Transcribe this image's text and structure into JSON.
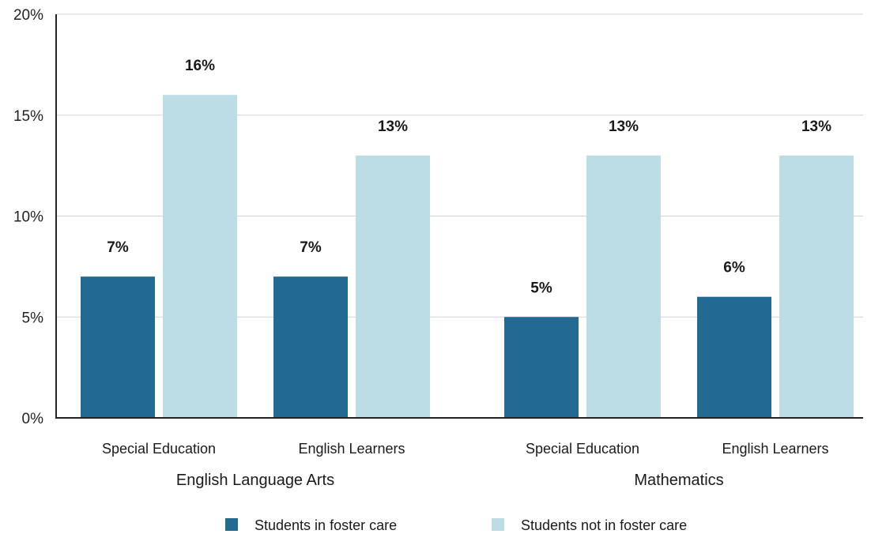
{
  "chart_data": {
    "type": "bar",
    "title": "",
    "xlabel": "",
    "ylabel": "",
    "ylim": [
      0,
      20
    ],
    "yticks": [
      0,
      5,
      10,
      15,
      20
    ],
    "ytick_labels": [
      "0%",
      "5%",
      "10%",
      "15%",
      "20%"
    ],
    "grid": true,
    "legend_position": "bottom",
    "groups": [
      {
        "label": "English Language Arts",
        "categories": [
          "Special Education",
          "English Learners"
        ]
      },
      {
        "label": "Mathematics",
        "categories": [
          "Special Education",
          "English Learners"
        ]
      }
    ],
    "series": [
      {
        "name": "Students in foster care",
        "color": "#236a92",
        "values": [
          7,
          7,
          5,
          6
        ],
        "labels": [
          "7%",
          "7%",
          "5%",
          "6%"
        ]
      },
      {
        "name": "Students not in foster care",
        "color": "#bcdde5",
        "values": [
          16,
          13,
          13,
          13
        ],
        "labels": [
          "16%",
          "13%",
          "13%",
          "13%"
        ]
      }
    ]
  }
}
